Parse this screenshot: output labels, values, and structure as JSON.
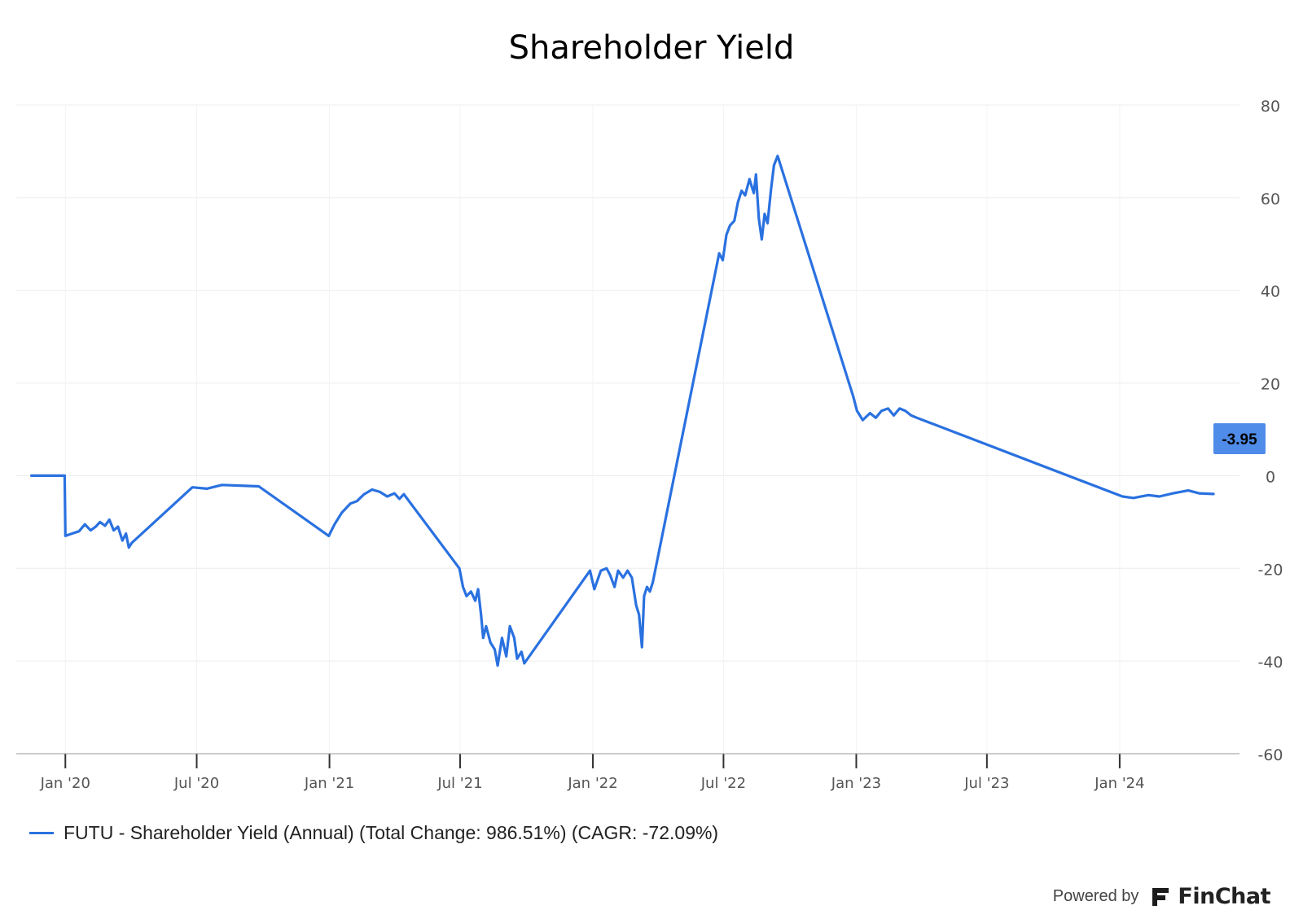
{
  "chart_data": {
    "type": "line",
    "title": "Shareholder Yield",
    "xlabel": "",
    "ylabel": "",
    "ylim": [
      -60,
      80
    ],
    "yticks": [
      "80",
      "60",
      "40",
      "20",
      "0",
      "-20",
      "-40",
      "-60"
    ],
    "ytick_values": [
      80,
      60,
      40,
      20,
      0,
      -20,
      -40,
      -60
    ],
    "xticks": [
      {
        "label": "Jan '20",
        "date": "2020-01-01"
      },
      {
        "label": "Jul '20",
        "date": "2020-07-01"
      },
      {
        "label": "Jan '21",
        "date": "2021-01-01"
      },
      {
        "label": "Jul '21",
        "date": "2021-07-01"
      },
      {
        "label": "Jan '22",
        "date": "2022-01-01"
      },
      {
        "label": "Jul '22",
        "date": "2022-07-01"
      },
      {
        "label": "Jan '23",
        "date": "2023-01-01"
      },
      {
        "label": "Jul '23",
        "date": "2023-07-01"
      },
      {
        "label": "Jan '24",
        "date": "2024-01-01"
      }
    ],
    "xlim": [
      "2019-10-25",
      "2024-06-15"
    ],
    "grid": true,
    "legend_position": "bottom-left",
    "series": [
      {
        "name": "FUTU - Shareholder Yield (Annual) (Total Change: 986.51%) (CAGR: -72.09%)",
        "color": "#2a71e0",
        "last_value_label": "-3.95",
        "points": [
          [
            "2019-11-15",
            0.0
          ],
          [
            "2019-12-31",
            0.0
          ],
          [
            "2020-01-01",
            -13.0
          ],
          [
            "2020-01-10",
            -12.5
          ],
          [
            "2020-01-20",
            -12.0
          ],
          [
            "2020-01-28",
            -10.5
          ],
          [
            "2020-02-05",
            -11.8
          ],
          [
            "2020-02-12",
            -11.0
          ],
          [
            "2020-02-18",
            -10.0
          ],
          [
            "2020-02-25",
            -10.8
          ],
          [
            "2020-03-02",
            -9.5
          ],
          [
            "2020-03-08",
            -11.8
          ],
          [
            "2020-03-14",
            -11.0
          ],
          [
            "2020-03-20",
            -14.0
          ],
          [
            "2020-03-25",
            -12.5
          ],
          [
            "2020-03-29",
            -15.5
          ],
          [
            "2020-04-02",
            -14.5
          ],
          [
            "2020-06-25",
            -2.5
          ],
          [
            "2020-07-15",
            -2.8
          ],
          [
            "2020-08-05",
            -2.0
          ],
          [
            "2020-09-25",
            -2.3
          ],
          [
            "2020-12-31",
            -13.0
          ],
          [
            "2021-01-08",
            -10.5
          ],
          [
            "2021-01-18",
            -8.0
          ],
          [
            "2021-01-30",
            -6.0
          ],
          [
            "2021-02-08",
            -5.5
          ],
          [
            "2021-02-18",
            -4.0
          ],
          [
            "2021-03-01",
            -3.0
          ],
          [
            "2021-03-12",
            -3.5
          ],
          [
            "2021-03-22",
            -4.5
          ],
          [
            "2021-04-01",
            -3.8
          ],
          [
            "2021-04-08",
            -5.0
          ],
          [
            "2021-04-14",
            -4.0
          ],
          [
            "2021-06-30",
            -20.0
          ],
          [
            "2021-07-05",
            -24.0
          ],
          [
            "2021-07-10",
            -26.0
          ],
          [
            "2021-07-16",
            -25.0
          ],
          [
            "2021-07-22",
            -27.0
          ],
          [
            "2021-07-26",
            -24.5
          ],
          [
            "2021-07-30",
            -30.0
          ],
          [
            "2021-08-02",
            -35.0
          ],
          [
            "2021-08-06",
            -32.5
          ],
          [
            "2021-08-12",
            -36.0
          ],
          [
            "2021-08-18",
            -37.5
          ],
          [
            "2021-08-22",
            -41.0
          ],
          [
            "2021-08-28",
            -35.0
          ],
          [
            "2021-09-03",
            -39.0
          ],
          [
            "2021-09-08",
            -32.5
          ],
          [
            "2021-09-14",
            -35.0
          ],
          [
            "2021-09-18",
            -39.5
          ],
          [
            "2021-09-24",
            -38.0
          ],
          [
            "2021-09-28",
            -40.5
          ],
          [
            "2021-12-28",
            -20.5
          ],
          [
            "2022-01-03",
            -24.5
          ],
          [
            "2022-01-12",
            -20.5
          ],
          [
            "2022-01-20",
            -20.0
          ],
          [
            "2022-01-25",
            -21.5
          ],
          [
            "2022-01-31",
            -24.0
          ],
          [
            "2022-02-05",
            -20.5
          ],
          [
            "2022-02-12",
            -22.0
          ],
          [
            "2022-02-18",
            -20.5
          ],
          [
            "2022-02-24",
            -22.0
          ],
          [
            "2022-03-02",
            -28.0
          ],
          [
            "2022-03-06",
            -30.0
          ],
          [
            "2022-03-10",
            -37.0
          ],
          [
            "2022-03-13",
            -26.0
          ],
          [
            "2022-03-17",
            -24.0
          ],
          [
            "2022-03-21",
            -25.0
          ],
          [
            "2022-03-25",
            -23.0
          ],
          [
            "2022-06-25",
            48.0
          ],
          [
            "2022-06-30",
            46.5
          ],
          [
            "2022-07-05",
            52.0
          ],
          [
            "2022-07-10",
            54.0
          ],
          [
            "2022-07-16",
            55.0
          ],
          [
            "2022-07-21",
            59.0
          ],
          [
            "2022-07-26",
            61.5
          ],
          [
            "2022-07-31",
            60.5
          ],
          [
            "2022-08-06",
            64.0
          ],
          [
            "2022-08-12",
            61.0
          ],
          [
            "2022-08-15",
            65.0
          ],
          [
            "2022-08-19",
            55.5
          ],
          [
            "2022-08-23",
            51.0
          ],
          [
            "2022-08-27",
            56.5
          ],
          [
            "2022-08-31",
            54.5
          ],
          [
            "2022-09-05",
            62.0
          ],
          [
            "2022-09-09",
            67.0
          ],
          [
            "2022-09-14",
            69.0
          ],
          [
            "2022-12-28",
            17.0
          ],
          [
            "2023-01-02",
            14.0
          ],
          [
            "2023-01-10",
            12.0
          ],
          [
            "2023-01-20",
            13.5
          ],
          [
            "2023-01-28",
            12.5
          ],
          [
            "2023-02-05",
            14.0
          ],
          [
            "2023-02-14",
            14.5
          ],
          [
            "2023-02-22",
            13.0
          ],
          [
            "2023-03-02",
            14.5
          ],
          [
            "2023-03-10",
            14.0
          ],
          [
            "2023-03-18",
            13.0
          ],
          [
            "2023-03-26",
            12.5
          ],
          [
            "2024-01-05",
            -4.5
          ],
          [
            "2024-01-20",
            -4.8
          ],
          [
            "2024-02-10",
            -4.2
          ],
          [
            "2024-02-25",
            -4.5
          ],
          [
            "2024-03-15",
            -3.8
          ],
          [
            "2024-04-05",
            -3.2
          ],
          [
            "2024-04-20",
            -3.8
          ],
          [
            "2024-05-10",
            -3.95
          ]
        ]
      }
    ]
  },
  "legend": {
    "label": "FUTU - Shareholder Yield (Annual) (Total Change: 986.51%) (CAGR: -72.09%)"
  },
  "footer": {
    "powered_by": "Powered by",
    "brand": "FinChat"
  },
  "colors": {
    "line": "#2a71e0",
    "badge": "#4f8be8",
    "grid": "#ececec",
    "axis": "#555555"
  }
}
